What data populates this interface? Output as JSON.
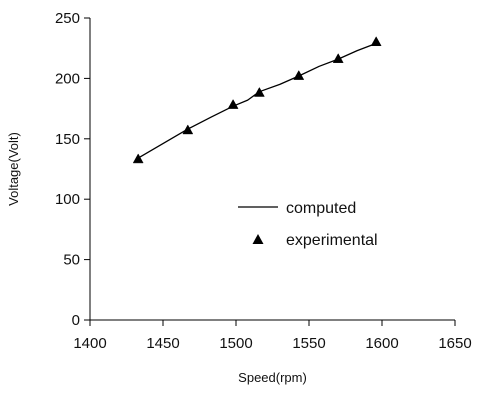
{
  "chart_data": {
    "type": "line",
    "title": "",
    "xlabel": "Speed(rpm)",
    "ylabel": "Voltage(Volt)",
    "xlim": [
      1400,
      1650
    ],
    "ylim": [
      0,
      250
    ],
    "x_ticks": [
      1400,
      1450,
      1500,
      1550,
      1600,
      1650
    ],
    "y_ticks": [
      0,
      50,
      100,
      150,
      200,
      250
    ],
    "grid": false,
    "legend_position": "center-right",
    "series": [
      {
        "name": "computed",
        "style": "line",
        "color": "#000000",
        "x": [
          1433,
          1450,
          1467,
          1483,
          1498,
          1508,
          1516,
          1530,
          1543,
          1557,
          1570,
          1583,
          1596
        ],
        "y": [
          134,
          146,
          158,
          168,
          177,
          182,
          189,
          195,
          202,
          210,
          216,
          223,
          229
        ]
      },
      {
        "name": "experimental",
        "style": "marker",
        "marker": "triangle",
        "color": "#000000",
        "x": [
          1433,
          1467,
          1498,
          1516,
          1543,
          1570,
          1596
        ],
        "y": [
          133,
          157,
          178,
          188,
          202,
          216,
          230
        ]
      }
    ]
  }
}
